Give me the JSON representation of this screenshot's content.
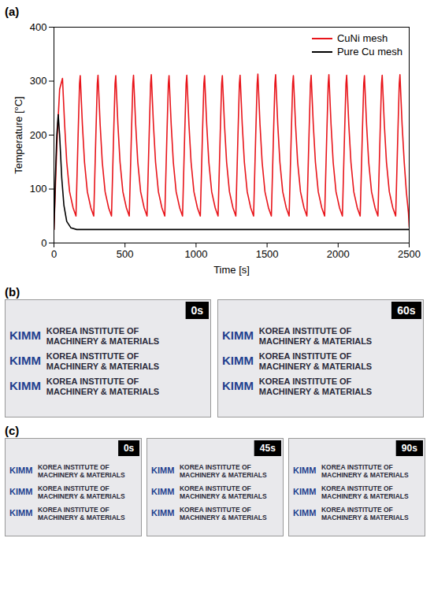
{
  "panel_labels": [
    "(a)",
    "(b)",
    "(c)"
  ],
  "chart_data": {
    "type": "line",
    "xlabel": "Time [s]",
    "ylabel": "Temperature [°C]",
    "xlim": [
      0,
      2500
    ],
    "ylim": [
      0,
      400
    ],
    "xticks": [
      0,
      500,
      1000,
      1500,
      2000,
      2500
    ],
    "yticks": [
      0,
      100,
      200,
      300,
      400
    ],
    "legend": "top-right",
    "series": [
      {
        "name": "CuNi mesh",
        "color": "#e8151b",
        "x": [
          0,
          20,
          40,
          60,
          75,
          90,
          110,
          135,
          155,
          170,
          180,
          185,
          200,
          215,
          235,
          260,
          280,
          295,
          305,
          310,
          325,
          340,
          360,
          385,
          405,
          420,
          430,
          435,
          450,
          465,
          485,
          510,
          530,
          545,
          555,
          560,
          575,
          590,
          610,
          635,
          655,
          670,
          680,
          685,
          700,
          715,
          735,
          760,
          780,
          795,
          805,
          810,
          825,
          840,
          860,
          885,
          905,
          920,
          930,
          935,
          950,
          965,
          985,
          1010,
          1030,
          1045,
          1055,
          1060,
          1075,
          1090,
          1110,
          1135,
          1155,
          1170,
          1180,
          1185,
          1200,
          1215,
          1235,
          1260,
          1280,
          1295,
          1305,
          1310,
          1325,
          1340,
          1360,
          1385,
          1405,
          1420,
          1430,
          1435,
          1450,
          1465,
          1485,
          1510,
          1530,
          1545,
          1555,
          1560,
          1575,
          1590,
          1610,
          1635,
          1655,
          1670,
          1680,
          1685,
          1700,
          1715,
          1735,
          1760,
          1780,
          1795,
          1805,
          1810,
          1825,
          1840,
          1860,
          1885,
          1905,
          1920,
          1930,
          1935,
          1950,
          1965,
          1985,
          2010,
          2030,
          2045,
          2055,
          2060,
          2075,
          2090,
          2110,
          2135,
          2155,
          2170,
          2180,
          2185,
          2200,
          2215,
          2235,
          2260,
          2280,
          2295,
          2305,
          2310,
          2325,
          2340,
          2360,
          2385,
          2405,
          2420,
          2430,
          2435,
          2450,
          2465,
          2480,
          2495,
          2500
        ],
        "values": [
          25,
          180,
          285,
          305,
          220,
          150,
          95,
          65,
          50,
          200,
          295,
          310,
          220,
          150,
          95,
          65,
          50,
          200,
          295,
          311,
          220,
          150,
          95,
          65,
          50,
          200,
          295,
          310,
          220,
          150,
          95,
          65,
          50,
          200,
          295,
          311,
          220,
          150,
          95,
          65,
          50,
          200,
          295,
          312,
          220,
          150,
          95,
          65,
          50,
          200,
          295,
          310,
          220,
          150,
          95,
          65,
          50,
          200,
          295,
          311,
          220,
          150,
          95,
          65,
          50,
          200,
          295,
          310,
          220,
          150,
          95,
          65,
          50,
          200,
          295,
          310,
          220,
          150,
          95,
          65,
          50,
          200,
          295,
          311,
          220,
          150,
          95,
          65,
          50,
          200,
          295,
          313,
          220,
          150,
          95,
          65,
          50,
          200,
          295,
          312,
          220,
          150,
          95,
          65,
          50,
          200,
          295,
          310,
          220,
          150,
          95,
          65,
          50,
          200,
          295,
          311,
          220,
          150,
          95,
          65,
          50,
          200,
          295,
          312,
          220,
          150,
          95,
          65,
          50,
          200,
          295,
          311,
          220,
          150,
          95,
          65,
          50,
          200,
          295,
          310,
          220,
          150,
          95,
          65,
          50,
          200,
          295,
          311,
          220,
          150,
          95,
          65,
          50,
          200,
          295,
          312,
          220,
          150,
          95,
          55,
          30
        ]
      },
      {
        "name": "Pure Cu mesh",
        "color": "#000000",
        "x": [
          0,
          10,
          20,
          30,
          40,
          55,
          70,
          90,
          120,
          160,
          2500
        ],
        "values": [
          25,
          120,
          200,
          238,
          200,
          120,
          70,
          40,
          28,
          25,
          25
        ]
      }
    ]
  },
  "photos": {
    "background_text": {
      "logo": "KIMM",
      "lines": [
        "KOREA INSTITUTE OF",
        "MACHINERY & MATERIALS"
      ]
    },
    "panel_b": {
      "timestamps": [
        "0s",
        "60s"
      ]
    },
    "panel_c": {
      "timestamps": [
        "0s",
        "45s",
        "90s"
      ]
    }
  }
}
